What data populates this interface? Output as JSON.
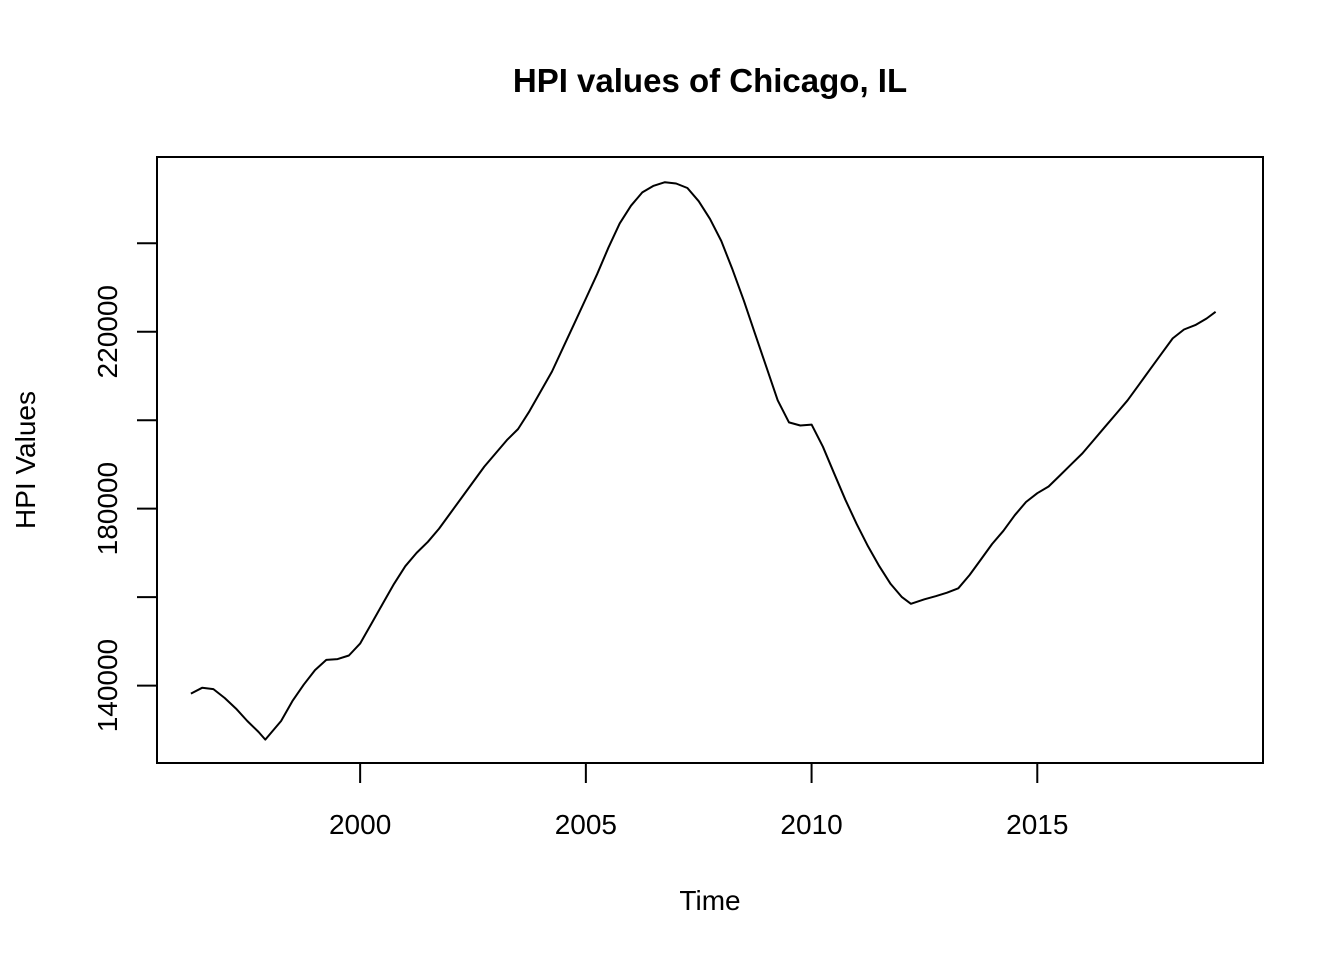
{
  "chart_data": {
    "type": "line",
    "title": "HPI values of Chicago, IL",
    "xlabel": "Time",
    "ylabel": "HPI Values",
    "xlim": [
      1995.5,
      2020.0
    ],
    "ylim": [
      122500,
      259500
    ],
    "x_ticks": [
      2000,
      2005,
      2010,
      2015
    ],
    "x_tick_labels": [
      "2000",
      "2005",
      "2010",
      "2015"
    ],
    "y_ticks": [
      140000,
      160000,
      180000,
      200000,
      220000,
      240000
    ],
    "y_tick_labels": [
      "140000",
      "",
      "180000",
      "",
      "220000",
      ""
    ],
    "grid": false,
    "series": [
      {
        "x": [
          1996.25,
          1996.5,
          1996.75,
          1997.0,
          1997.25,
          1997.5,
          1997.75,
          1997.9,
          1998.25,
          1998.5,
          1998.75,
          1999.0,
          1999.25,
          1999.5,
          1999.75,
          2000.0,
          2000.25,
          2000.5,
          2000.75,
          2001.0,
          2001.25,
          2001.5,
          2001.75,
          2002.0,
          2002.25,
          2002.5,
          2002.75,
          2003.0,
          2003.25,
          2003.5,
          2003.75,
          2004.0,
          2004.25,
          2004.5,
          2004.75,
          2005.0,
          2005.25,
          2005.5,
          2005.75,
          2006.0,
          2006.25,
          2006.5,
          2006.75,
          2007.0,
          2007.25,
          2007.5,
          2007.75,
          2008.0,
          2008.25,
          2008.5,
          2008.75,
          2009.0,
          2009.25,
          2009.5,
          2009.75,
          2010.0,
          2010.25,
          2010.5,
          2010.75,
          2011.0,
          2011.25,
          2011.5,
          2011.75,
          2012.0,
          2012.2,
          2012.5,
          2012.75,
          2013.0,
          2013.25,
          2013.5,
          2013.75,
          2014.0,
          2014.25,
          2014.5,
          2014.75,
          2015.0,
          2015.25,
          2015.5,
          2015.75,
          2016.0,
          2016.25,
          2016.5,
          2016.75,
          2017.0,
          2017.25,
          2017.5,
          2017.75,
          2018.0,
          2018.25,
          2018.5,
          2018.75,
          2018.95
        ],
        "y": [
          138200,
          139500,
          139200,
          137200,
          134800,
          132000,
          129500,
          127800,
          132000,
          136500,
          140200,
          143500,
          145800,
          146000,
          146800,
          149500,
          154000,
          158500,
          163000,
          167000,
          170000,
          172500,
          175500,
          179000,
          182500,
          186000,
          189500,
          192500,
          195500,
          198000,
          202000,
          206500,
          211000,
          216500,
          222000,
          227500,
          233000,
          239000,
          244500,
          248500,
          251500,
          253000,
          253800,
          253500,
          252500,
          249500,
          245500,
          240500,
          234000,
          227000,
          219500,
          212000,
          204500,
          199500,
          198800,
          199000,
          194000,
          188000,
          182000,
          176500,
          171500,
          167000,
          163000,
          160000,
          158500,
          159500,
          160200,
          161000,
          162000,
          165000,
          168500,
          172000,
          175000,
          178500,
          181500,
          183500,
          185000,
          187500,
          190000,
          192500,
          195500,
          198500,
          201500,
          204500,
          208000,
          211500,
          215000,
          218500,
          220500,
          221500,
          223000,
          224500
        ]
      }
    ]
  }
}
